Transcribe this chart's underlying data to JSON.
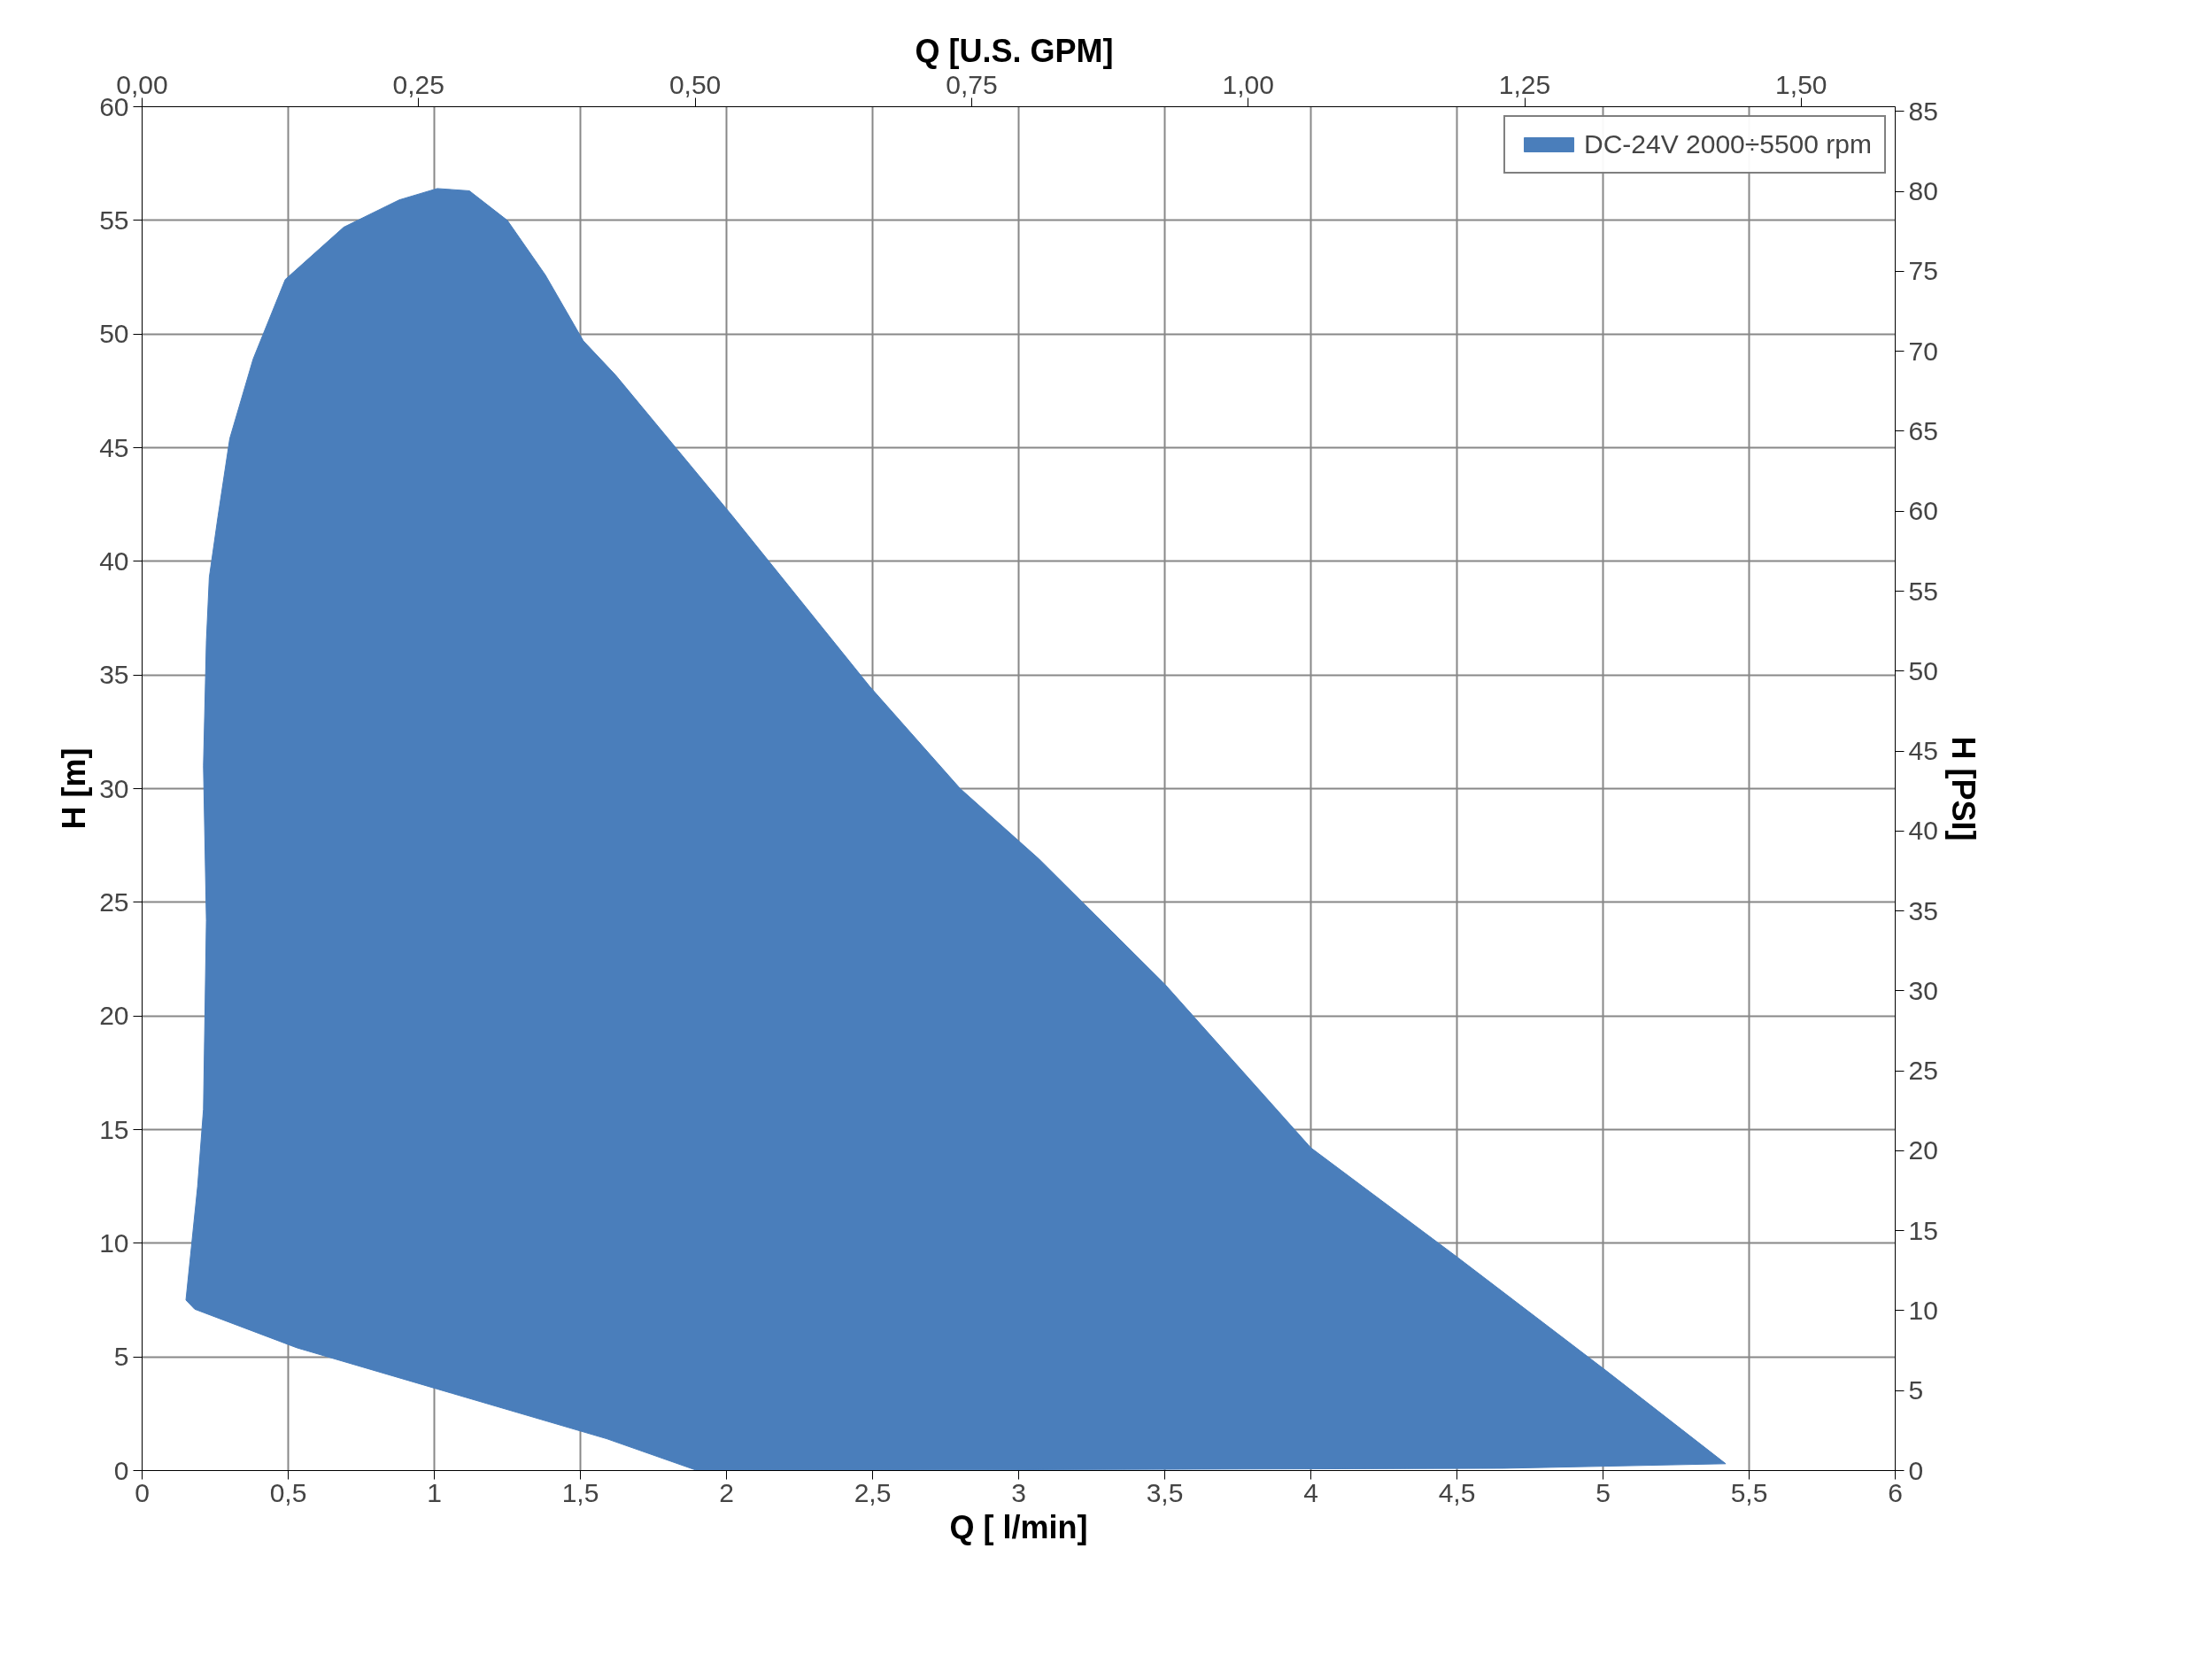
{
  "chart_data": {
    "type": "area",
    "xlabel": "Q [ l/min]",
    "ylabel": "H [m]",
    "x2label": "Q  [U.S. GPM]",
    "y2label": "H [PSI]",
    "xlim": [
      0,
      6
    ],
    "xticks": [
      0,
      {
        "value": 0.5,
        "label": "0,5"
      },
      1,
      {
        "value": 1.5,
        "label": "1,5"
      },
      2,
      {
        "value": 2.5,
        "label": "2,5"
      },
      3,
      {
        "value": 3.5,
        "label": "3,5"
      },
      4,
      {
        "value": 4.5,
        "label": "4,5"
      },
      5,
      {
        "value": 5.5,
        "label": "5,5"
      },
      6
    ],
    "ylim": [
      0,
      60
    ],
    "yticks": [
      0,
      5,
      10,
      15,
      20,
      25,
      30,
      35,
      40,
      45,
      50,
      55,
      60
    ],
    "x2lim": [
      0,
      1.585
    ],
    "x2ticks": [
      {
        "value": 0,
        "label": "0,00"
      },
      {
        "value": 0.25,
        "label": "0,25"
      },
      {
        "value": 0.5,
        "label": "0,50"
      },
      {
        "value": 0.75,
        "label": "0,75"
      },
      {
        "value": 1.0,
        "label": "1,00"
      },
      {
        "value": 1.25,
        "label": "1,25"
      },
      {
        "value": 1.5,
        "label": "1,50"
      }
    ],
    "y2lim": [
      0,
      85.3
    ],
    "y2ticks": [
      0,
      5,
      10,
      15,
      20,
      25,
      30,
      35,
      40,
      45,
      50,
      55,
      60,
      65,
      70,
      75,
      80,
      85
    ],
    "grid": true,
    "legend": "top right",
    "series": [
      {
        "name": "DC-24V 2000÷5500 rpm",
        "color": "#4a7ebb",
        "x": [
          0.15,
          0.19,
          0.21,
          0.22,
          0.21,
          0.22,
          0.23,
          0.26,
          0.3,
          0.38,
          0.49,
          0.69,
          0.88,
          1.01,
          1.12,
          1.25,
          1.38,
          1.51,
          1.62,
          2.02,
          2.49,
          2.8,
          3.07,
          3.5,
          4.0,
          4.5,
          5.01,
          5.42,
          4.66,
          2.02,
          1.9,
          1.59,
          1.06,
          0.53,
          0.18
        ],
        "values": [
          7.5,
          12.5,
          15.9,
          24.2,
          31,
          36.5,
          39.3,
          42,
          45.4,
          48.9,
          52.4,
          54.7,
          55.9,
          56.4,
          56.3,
          55,
          52.6,
          49.7,
          48.2,
          42,
          34.5,
          30,
          26.9,
          21.4,
          14.2,
          9.4,
          4.4,
          0.3,
          0.1,
          0,
          0,
          1.4,
          3.4,
          5.4,
          7.1
        ]
      }
    ]
  }
}
